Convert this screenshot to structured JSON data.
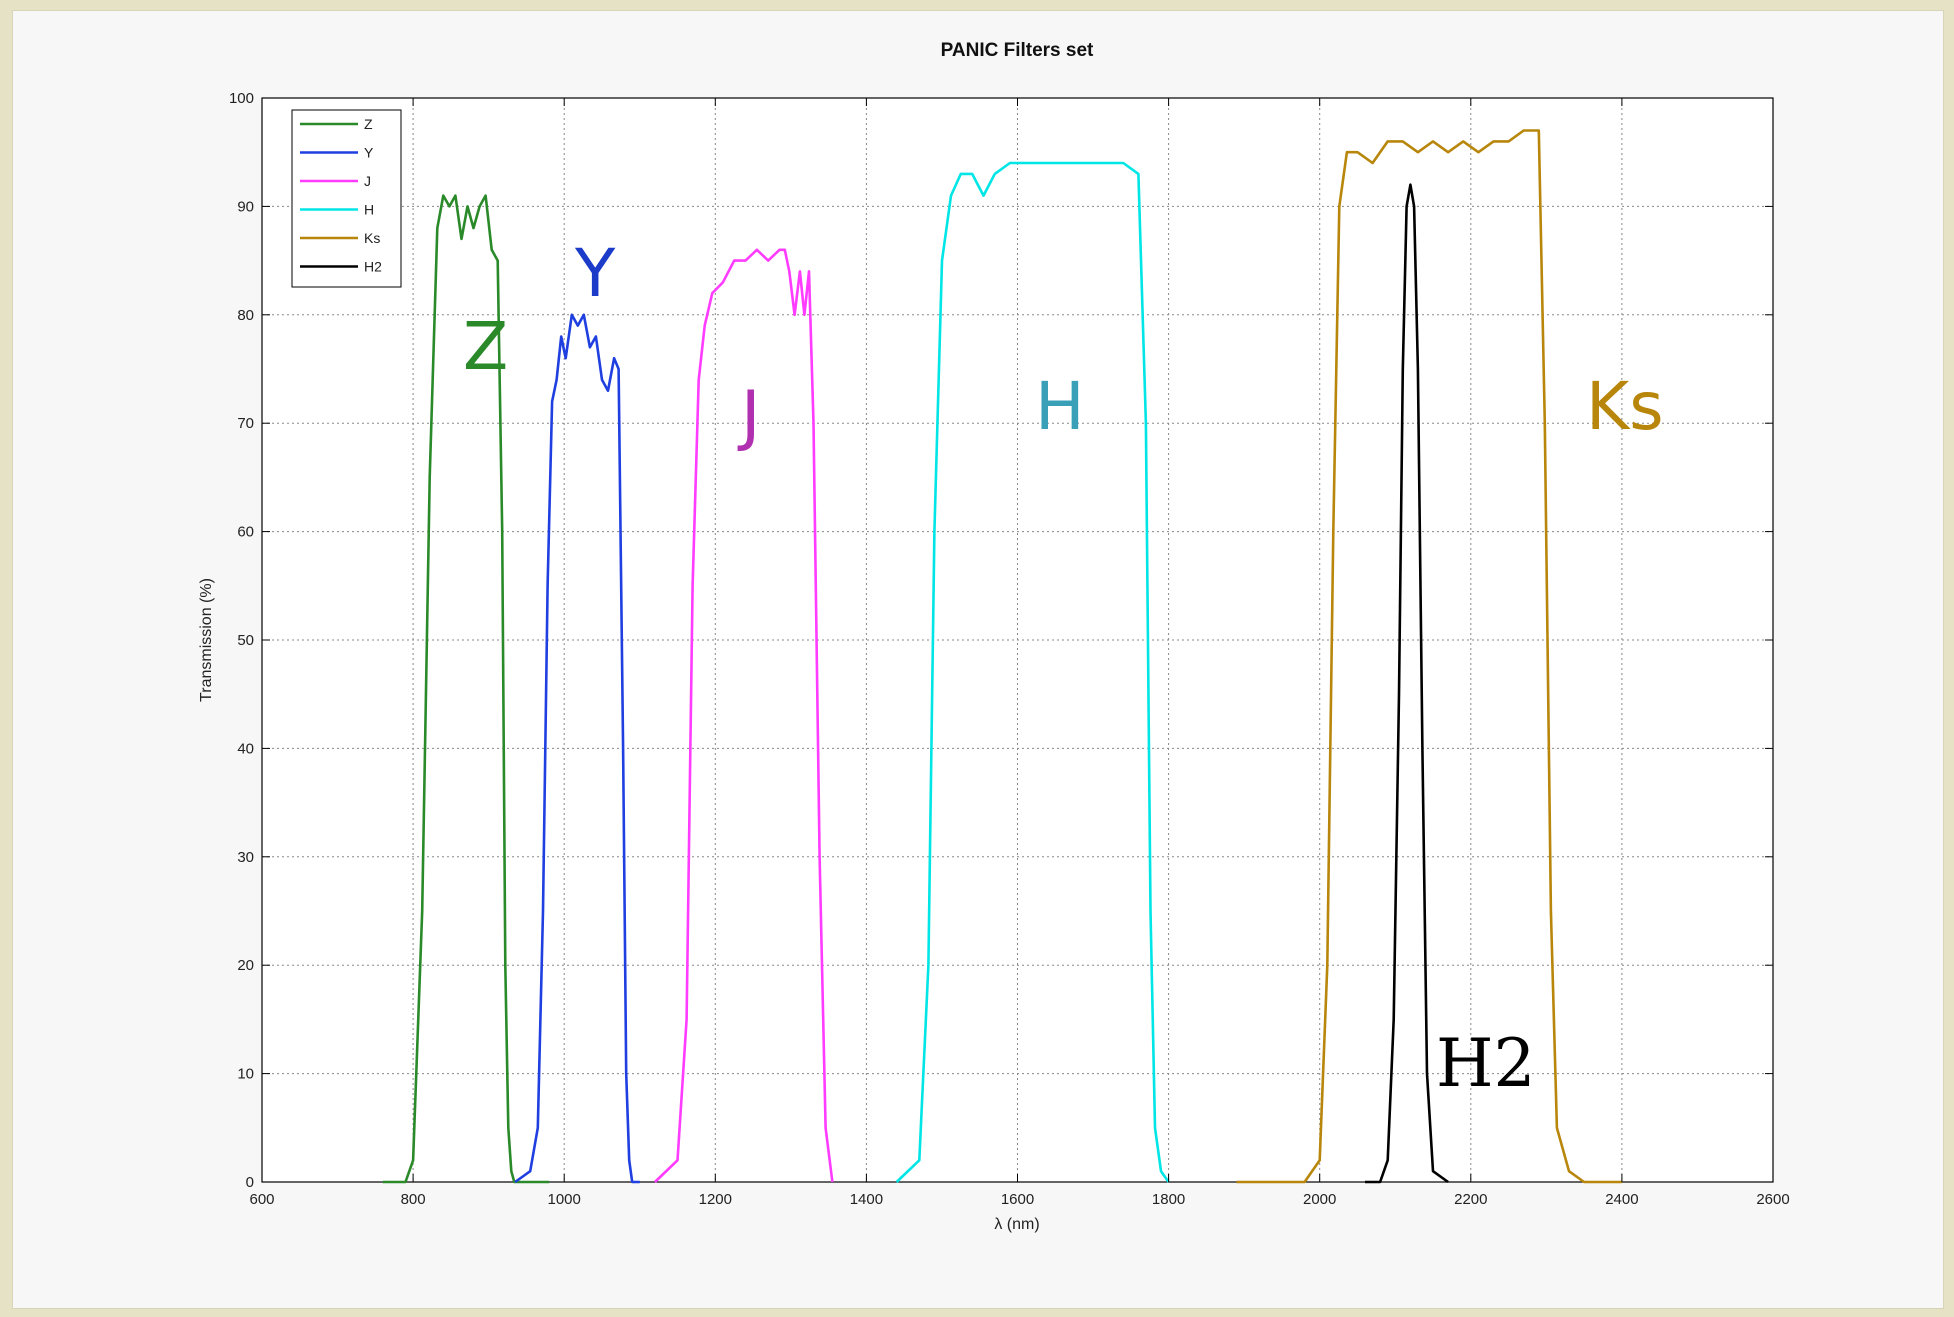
{
  "chart_data": {
    "type": "line",
    "title": "PANIC Filters set",
    "xlabel": "λ (nm)",
    "ylabel": "Transmission (%)",
    "xlim": [
      600,
      2600
    ],
    "ylim": [
      0,
      100
    ],
    "x_ticks": [
      600,
      800,
      1000,
      1200,
      1400,
      1600,
      1800,
      2000,
      2200,
      2400,
      2600
    ],
    "y_ticks": [
      0,
      10,
      20,
      30,
      40,
      50,
      60,
      70,
      80,
      90,
      100
    ],
    "grid": true,
    "legend_position": "top-left",
    "series": [
      {
        "name": "Z",
        "color": "#2a8a2a",
        "annotation": "Z",
        "x": [
          760,
          790,
          800,
          812,
          822,
          832,
          840,
          848,
          856,
          864,
          872,
          880,
          888,
          896,
          904,
          912,
          918,
          922,
          926,
          930,
          934,
          940,
          955,
          980
        ],
        "y": [
          0,
          0,
          2,
          25,
          65,
          88,
          91,
          90,
          91,
          87,
          90,
          88,
          90,
          91,
          86,
          85,
          60,
          20,
          5,
          1,
          0,
          0,
          0,
          0
        ]
      },
      {
        "name": "Y",
        "color": "#1f3fe0",
        "annotation": "Y",
        "x": [
          935,
          955,
          965,
          972,
          978,
          984,
          990,
          996,
          1002,
          1010,
          1018,
          1026,
          1034,
          1042,
          1050,
          1058,
          1066,
          1072,
          1078,
          1082,
          1086,
          1090,
          1100
        ],
        "y": [
          0,
          1,
          5,
          25,
          55,
          72,
          74,
          78,
          76,
          80,
          79,
          80,
          77,
          78,
          74,
          73,
          76,
          75,
          40,
          10,
          2,
          0,
          0
        ]
      },
      {
        "name": "J",
        "color": "#ff3cff",
        "annotation": "J",
        "x": [
          1120,
          1150,
          1162,
          1170,
          1178,
          1186,
          1196,
          1210,
          1225,
          1240,
          1255,
          1270,
          1285,
          1292,
          1298,
          1305,
          1312,
          1318,
          1324,
          1330,
          1338,
          1346,
          1355
        ],
        "y": [
          0,
          2,
          15,
          55,
          74,
          79,
          82,
          83,
          85,
          85,
          86,
          85,
          86,
          86,
          84,
          80,
          84,
          80,
          84,
          70,
          30,
          5,
          0
        ]
      },
      {
        "name": "H",
        "color": "#00e5e5",
        "annotation": "H",
        "x": [
          1440,
          1470,
          1482,
          1490,
          1500,
          1512,
          1525,
          1540,
          1555,
          1570,
          1590,
          1620,
          1660,
          1700,
          1740,
          1760,
          1770,
          1776,
          1782,
          1790,
          1800
        ],
        "y": [
          0,
          2,
          20,
          60,
          85,
          91,
          93,
          93,
          91,
          93,
          94,
          94,
          94,
          94,
          94,
          93,
          70,
          25,
          5,
          1,
          0
        ]
      },
      {
        "name": "Ks",
        "color": "#b8860b",
        "annotation": "Ks",
        "x": [
          1890,
          1980,
          2000,
          2010,
          2018,
          2026,
          2036,
          2050,
          2070,
          2090,
          2110,
          2130,
          2150,
          2170,
          2190,
          2210,
          2230,
          2250,
          2270,
          2290,
          2298,
          2306,
          2314,
          2330,
          2350,
          2400
        ],
        "y": [
          0,
          0,
          2,
          20,
          60,
          90,
          95,
          95,
          94,
          96,
          96,
          95,
          96,
          95,
          96,
          95,
          96,
          96,
          97,
          97,
          70,
          25,
          5,
          1,
          0,
          0
        ]
      },
      {
        "name": "H2",
        "color": "#000000",
        "annotation": "H2",
        "x": [
          2060,
          2080,
          2090,
          2098,
          2105,
          2110,
          2115,
          2120,
          2125,
          2130,
          2136,
          2142,
          2150,
          2170
        ],
        "y": [
          0,
          0,
          2,
          15,
          45,
          75,
          90,
          92,
          90,
          75,
          40,
          10,
          1,
          0
        ]
      }
    ]
  }
}
